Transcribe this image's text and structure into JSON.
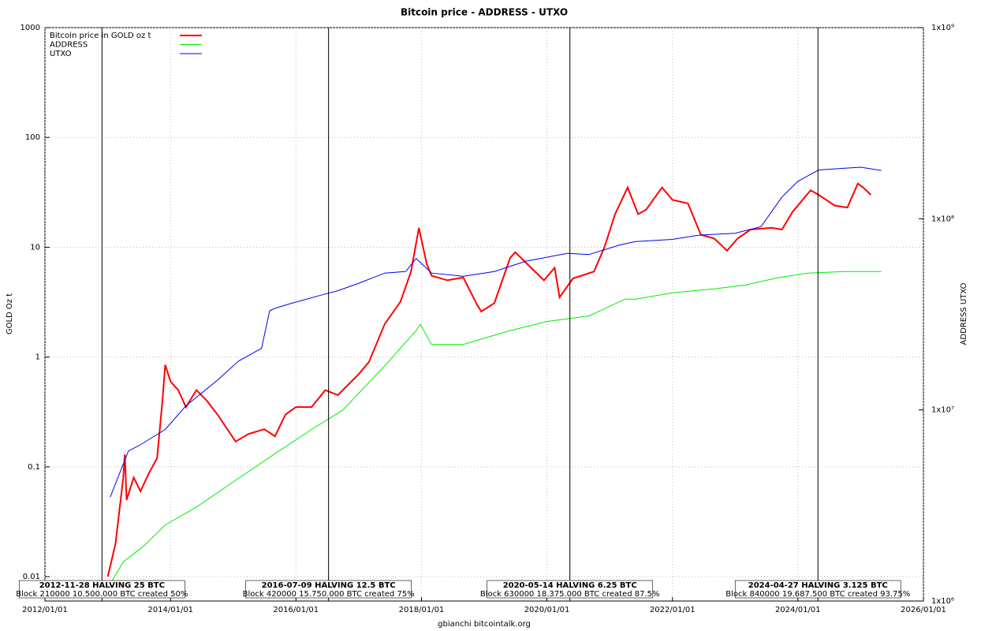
{
  "chart_data": {
    "type": "line",
    "title": "Bitcoin price - ADDRESS - UTXO",
    "ylabel": "GOLD Oz t",
    "y2label": "ADDRESS UTXO",
    "footer": "gbianchi bitcointalk.org",
    "xlim": [
      "2012/01/01",
      "2026/01/01"
    ],
    "xticks": [
      "2012/01/01",
      "2014/01/01",
      "2016/01/01",
      "2018/01/01",
      "2020/01/01",
      "2022/01/01",
      "2024/01/01",
      "2026/01/01"
    ],
    "ylim": [
      0.006,
      1000
    ],
    "yticks": [
      0.01,
      0.1,
      1,
      10,
      100,
      1000
    ],
    "ylog": true,
    "y2lim": [
      1000000,
      1000000000
    ],
    "y2ticks": [
      {
        "value": 1000000,
        "label": "1x10⁶"
      },
      {
        "value": 10000000,
        "label": "1x10⁷"
      },
      {
        "value": 100000000,
        "label": "1x10⁸"
      },
      {
        "value": 1000000000,
        "label": "1x10⁹"
      }
    ],
    "y2log": true,
    "grid": true,
    "legend": "upper-left",
    "series": [
      {
        "name": "Bitcoin price in GOLD oz t",
        "color": "#ff0000",
        "x": [
          "2013/01/01",
          "2013/02/15",
          "2013/04/01",
          "2013/04/10",
          "2013/04/20",
          "2013/06/01",
          "2013/07/10",
          "2013/09/01",
          "2013/10/15",
          "2013/11/15",
          "2013/12/01",
          "2014/01/01",
          "2014/02/15",
          "2014/04/01",
          "2014/06/01",
          "2014/08/01",
          "2014/10/01",
          "2015/01/15",
          "2015/04/01",
          "2015/07/01",
          "2015/09/01",
          "2015/11/01",
          "2016/01/01",
          "2016/04/01",
          "2016/06/20",
          "2016/09/01",
          "2017/01/01",
          "2017/03/01",
          "2017/06/01",
          "2017/09/01",
          "2017/11/01",
          "2017/12/17",
          "2018/02/01",
          "2018/03/01",
          "2018/06/01",
          "2018/09/01",
          "2018/11/20",
          "2018/12/15",
          "2019/03/01",
          "2019/06/01",
          "2019/07/01",
          "2019/10/01",
          "2019/12/15",
          "2020/02/15",
          "2020/03/15",
          "2020/06/01",
          "2020/10/01",
          "2020/12/01",
          "2021/02/01",
          "2021/04/15",
          "2021/06/15",
          "2021/08/01",
          "2021/11/01",
          "2022/01/01",
          "2022/04/01",
          "2022/06/15",
          "2022/09/01",
          "2022/11/15",
          "2023/01/15",
          "2023/04/01",
          "2023/08/01",
          "2023/10/01",
          "2023/12/01",
          "2024/03/15",
          "2024/05/01",
          "2024/08/01",
          "2024/10/15",
          "2024/12/15",
          "2025/01/15",
          "2025/03/01"
        ],
        "values": [
          0.01,
          0.02,
          0.08,
          0.13,
          0.05,
          0.08,
          0.06,
          0.09,
          0.12,
          0.4,
          0.85,
          0.6,
          0.5,
          0.35,
          0.5,
          0.4,
          0.3,
          0.17,
          0.2,
          0.22,
          0.19,
          0.3,
          0.35,
          0.35,
          0.5,
          0.45,
          0.7,
          0.9,
          2,
          3.2,
          6,
          15,
          7,
          5.5,
          5,
          5.3,
          3,
          2.6,
          3.1,
          8,
          9,
          6.5,
          5,
          6.5,
          3.5,
          5.2,
          6,
          10,
          20,
          35,
          20,
          22,
          35,
          27,
          25,
          13,
          12,
          9.3,
          12,
          14.5,
          15,
          14.5,
          21,
          33,
          30,
          24,
          23,
          38,
          35,
          30
        ]
      },
      {
        "name": "ADDRESS",
        "color": "#00ee00",
        "axis": "y2",
        "x": [
          "2013/01/01",
          "2013/04/01",
          "2013/08/01",
          "2013/12/01",
          "2014/06/01",
          "2015/01/01",
          "2015/09/01",
          "2016/04/01",
          "2016/10/01",
          "2017/06/01",
          "2017/12/01",
          "2017/12/25",
          "2018/03/01",
          "2018/09/01",
          "2019/06/01",
          "2020/01/01",
          "2020/09/01",
          "2021/04/01",
          "2021/06/01",
          "2022/01/01",
          "2022/09/01",
          "2023/03/01",
          "2023/09/01",
          "2024/03/01",
          "2024/10/01",
          "2025/05/01"
        ],
        "values": [
          1170000,
          1600000,
          1950000,
          2500000,
          3100000,
          4200000,
          5900000,
          7900000,
          10000000,
          17000000,
          26000000,
          28000000,
          22000000,
          22000000,
          26000000,
          29000000,
          31000000,
          38000000,
          38000000,
          41000000,
          43000000,
          45000000,
          49000000,
          52000000,
          53000000,
          53000000
        ]
      },
      {
        "name": "UTXO",
        "color": "#0000ee",
        "axis": "y2",
        "x": [
          "2013/01/15",
          "2013/05/01",
          "2013/07/01",
          "2013/12/01",
          "2014/04/01",
          "2014/10/01",
          "2015/02/01",
          "2015/06/15",
          "2015/08/01",
          "2015/09/01",
          "2015/12/01",
          "2016/06/01",
          "2016/09/01",
          "2017/01/01",
          "2017/06/01",
          "2017/10/01",
          "2017/12/01",
          "2018/03/01",
          "2018/09/01",
          "2019/03/01",
          "2019/09/01",
          "2020/05/01",
          "2020/09/01",
          "2021/03/01",
          "2021/06/01",
          "2022/01/01",
          "2022/06/01",
          "2023/01/01",
          "2023/06/01",
          "2023/10/01",
          "2024/01/01",
          "2024/05/01",
          "2024/10/01",
          "2025/01/01",
          "2025/05/01"
        ],
        "values": [
          3500000,
          6100000,
          6500000,
          7900000,
          10500000,
          14300000,
          18000000,
          21000000,
          33000000,
          34000000,
          36000000,
          40000000,
          42000000,
          46000000,
          52000000,
          53000000,
          62000000,
          52000000,
          50000000,
          53000000,
          60000000,
          66000000,
          65000000,
          73000000,
          76000000,
          78000000,
          82000000,
          84000000,
          91000000,
          130000000,
          157000000,
          180000000,
          184000000,
          186000000,
          179000000
        ]
      }
    ],
    "halvings": [
      {
        "x": "2012/11/28",
        "label": "2012-11-28 HALVING 25 BTC",
        "detail": "Block 210000 10.500.000 BTC created 50%"
      },
      {
        "x": "2016/07/09",
        "label": "2016-07-09 HALVING 12.5 BTC",
        "detail": "Block 420000 15.750.000 BTC created 75%"
      },
      {
        "x": "2020/05/14",
        "label": "2020-05-14 HALVING 6.25 BTC",
        "detail": "Block 630000 18.375.000 BTC created 87.5%"
      },
      {
        "x": "2024/04/27",
        "label": "2024-04-27 HALVING 3.125 BTC",
        "detail": "Block 840000 19.687.500 BTC created 93.75%"
      }
    ]
  }
}
